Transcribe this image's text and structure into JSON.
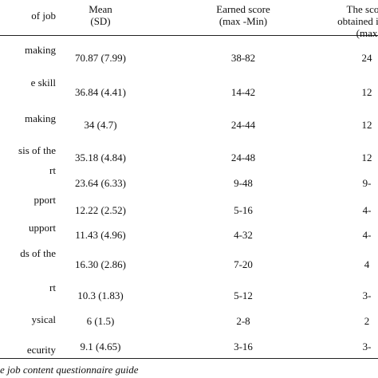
{
  "table": {
    "header": [
      [
        "of job"
      ],
      [
        "Mean",
        "(SD)"
      ],
      [
        "Earned score",
        "(max -Min)"
      ],
      [
        "The score",
        "obtained in an",
        "(max"
      ]
    ],
    "rows": [
      [
        "making",
        "70.87 (7.99)",
        "38-82",
        "24"
      ],
      [
        "e skill",
        "36.84 (4.41)",
        "14-42",
        "12"
      ],
      [
        "making",
        "34 (4.7)",
        "24-44",
        "12"
      ],
      [
        "sis of the",
        "35.18 (4.84)",
        "24-48",
        "12"
      ],
      [
        "rt",
        "23.64 (6.33)",
        "9-48",
        "9-"
      ],
      [
        "pport",
        "12.22 (2.52)",
        "5-16",
        "4-"
      ],
      [
        "upport",
        "11.43 (4.96)",
        "4-32",
        "4-"
      ],
      [
        "ds of the",
        "16.30 (2.86)",
        "7-20",
        "4"
      ],
      [
        "rt",
        "10.3 (1.83)",
        "5-12",
        "3-"
      ],
      [
        "ysical",
        "6 (1.5)",
        "2-8",
        "2"
      ],
      [
        "ecurity",
        "9.1 (4.65)",
        "3-16",
        "3-"
      ]
    ],
    "note": "e job content questionnaire guide"
  }
}
